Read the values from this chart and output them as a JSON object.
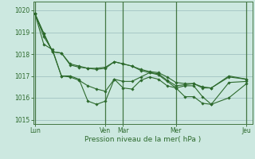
{
  "background_color": "#cce8e0",
  "grid_color": "#99bbbb",
  "line_color": "#2d6a2d",
  "marker_color": "#2d6a2d",
  "xlabel": "Pression niveau de la mer( hPa )",
  "ylim": [
    1014.8,
    1020.4
  ],
  "yticks": [
    1015,
    1016,
    1017,
    1018,
    1019,
    1020
  ],
  "x_day_labels": [
    "Lun",
    "Ven",
    "Mar",
    "Mer",
    "Jeu"
  ],
  "x_day_positions": [
    0,
    12,
    15,
    24,
    36
  ],
  "series": [
    [
      1019.85,
      1018.45,
      1018.2,
      1017.0,
      1017.0,
      1016.85,
      1015.85,
      1015.7,
      1015.85,
      1016.85,
      1016.45,
      1016.4,
      1016.8,
      1016.95,
      1016.85,
      1016.55,
      1016.45,
      1016.05,
      1016.05,
      1015.75,
      1015.7,
      1016.0,
      1016.65
    ],
    [
      1019.85,
      1018.8,
      1018.15,
      1017.0,
      1016.95,
      1016.8,
      1016.55,
      1016.4,
      1016.3,
      1016.85,
      1016.75,
      1016.75,
      1016.95,
      1017.15,
      1017.05,
      1016.75,
      1016.45,
      1016.55,
      1016.55,
      1016.05,
      1015.7,
      1016.7,
      1016.75
    ],
    [
      1019.85,
      1018.95,
      1018.1,
      1018.05,
      1017.5,
      1017.4,
      1017.35,
      1017.3,
      1017.35,
      1017.65,
      1017.55,
      1017.45,
      1017.25,
      1017.15,
      1017.1,
      1016.8,
      1016.55,
      1016.6,
      1016.65,
      1016.45,
      1016.45,
      1016.95,
      1016.85
    ],
    [
      1019.85,
      1018.95,
      1018.1,
      1018.05,
      1017.55,
      1017.45,
      1017.35,
      1017.35,
      1017.4,
      1017.65,
      1017.55,
      1017.45,
      1017.3,
      1017.2,
      1017.15,
      1016.95,
      1016.7,
      1016.65,
      1016.65,
      1016.5,
      1016.45,
      1017.0,
      1016.85
    ]
  ],
  "x_values": [
    0,
    1.5,
    3,
    4.5,
    6,
    7.5,
    9,
    10.5,
    12,
    13.5,
    15,
    16.5,
    18,
    19.5,
    21,
    22.5,
    24,
    25.5,
    27,
    28.5,
    30,
    33,
    36
  ]
}
